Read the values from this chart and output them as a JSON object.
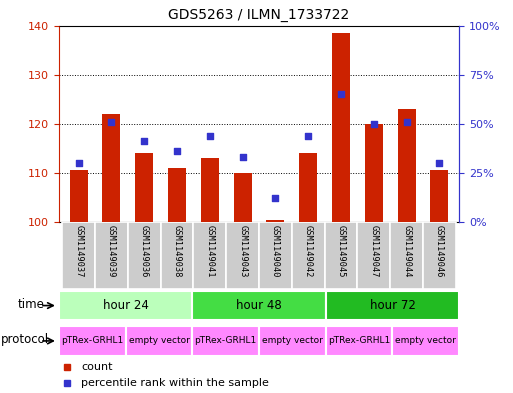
{
  "title": "GDS5263 / ILMN_1733722",
  "samples": [
    "GSM1149037",
    "GSM1149039",
    "GSM1149036",
    "GSM1149038",
    "GSM1149041",
    "GSM1149043",
    "GSM1149040",
    "GSM1149042",
    "GSM1149045",
    "GSM1149047",
    "GSM1149044",
    "GSM1149046"
  ],
  "counts": [
    110.5,
    122.0,
    114.0,
    111.0,
    113.0,
    110.0,
    100.5,
    114.0,
    138.5,
    120.0,
    123.0,
    110.5
  ],
  "percentiles": [
    30,
    51,
    41,
    36,
    44,
    33,
    12,
    44,
    65,
    50,
    51,
    30
  ],
  "ylim_left": [
    100,
    140
  ],
  "ylim_right": [
    0,
    100
  ],
  "yticks_left": [
    100,
    110,
    120,
    130,
    140
  ],
  "yticks_right": [
    0,
    25,
    50,
    75,
    100
  ],
  "ytick_labels_right": [
    "0%",
    "25%",
    "50%",
    "75%",
    "100%"
  ],
  "bar_color": "#cc2200",
  "dot_color": "#3333cc",
  "bar_width": 0.55,
  "background_color": "#ffffff",
  "plot_bg_color": "#ffffff",
  "time_colors": [
    "#bbffbb",
    "#44dd44",
    "#22bb22"
  ],
  "protocol_color": "#ff88ff",
  "sample_bg_color": "#cccccc",
  "left_axis_color": "#cc2200",
  "right_axis_color": "#3333cc",
  "time_labels": [
    "hour 24",
    "hour 48",
    "hour 72"
  ],
  "time_starts": [
    0,
    4,
    8
  ],
  "time_ends": [
    4,
    8,
    12
  ],
  "protocol_labels": [
    "pTRex-GRHL1",
    "empty vector",
    "pTRex-GRHL1",
    "empty vector",
    "pTRex-GRHL1",
    "empty vector"
  ],
  "protocol_starts": [
    0,
    2,
    4,
    6,
    8,
    10
  ],
  "protocol_ends": [
    2,
    4,
    6,
    8,
    10,
    12
  ]
}
